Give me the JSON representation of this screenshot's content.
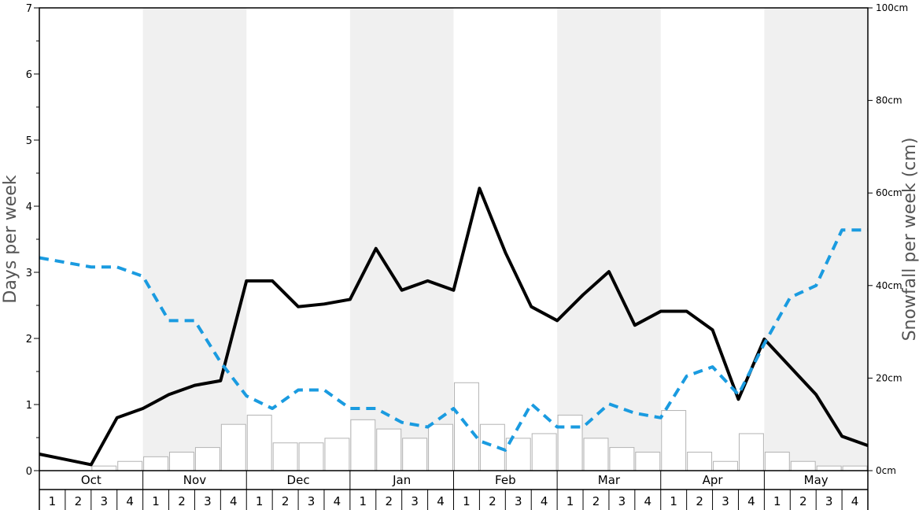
{
  "chart_data": {
    "type": "bar",
    "left_axis": {
      "label": "Days per week",
      "ylim": [
        0,
        7
      ],
      "ticks": [
        "0",
        "1",
        "2",
        "3",
        "4",
        "5",
        "6",
        "7"
      ]
    },
    "right_axis": {
      "label": "Snowfall per week (cm)",
      "ylim": [
        0,
        100
      ],
      "ticks": [
        "0cm",
        "20cm",
        "40cm",
        "60cm",
        "80cm",
        "100cm"
      ]
    },
    "months": [
      "Oct",
      "Nov",
      "Dec",
      "Jan",
      "Feb",
      "Mar",
      "Apr",
      "May"
    ],
    "weeks": [
      "1",
      "2",
      "3",
      "4"
    ],
    "shaded_months": [
      "Nov",
      "Jan",
      "Mar",
      "May"
    ],
    "series": [
      {
        "style": "bars",
        "axis": "right",
        "unit": "cm",
        "values": [
          0,
          0,
          1,
          2,
          3,
          4,
          5,
          10,
          12,
          6,
          6,
          7,
          11,
          9,
          7,
          10,
          19,
          10,
          7,
          8,
          12,
          7,
          5,
          4,
          13,
          4,
          2,
          8,
          4,
          2,
          1,
          1
        ]
      },
      {
        "style": "solid-line",
        "color": "#000000",
        "axis": "left",
        "values": [
          0.25,
          0.17,
          0.09,
          0.8,
          0.94,
          1.15,
          1.29,
          1.36,
          2.87,
          2.87,
          2.48,
          2.52,
          2.59,
          3.36,
          2.73,
          2.87,
          2.73,
          4.27,
          3.3,
          2.48,
          2.27,
          2.66,
          3.01,
          2.2,
          2.41,
          2.41,
          2.13,
          1.08,
          1.99,
          1.57,
          1.15,
          0.52,
          0.38
        ]
      },
      {
        "style": "dashed-line",
        "color": "#1a9be0",
        "axis": "left",
        "values": [
          3.22,
          3.15,
          3.08,
          3.08,
          2.94,
          2.27,
          2.27,
          1.64,
          1.13,
          0.94,
          1.22,
          1.22,
          0.94,
          0.94,
          0.73,
          0.66,
          0.94,
          0.45,
          0.31,
          1.01,
          0.66,
          0.66,
          1.01,
          0.87,
          0.8,
          1.43,
          1.57,
          1.15,
          1.92,
          2.62,
          2.8,
          3.64,
          3.64
        ]
      }
    ]
  }
}
